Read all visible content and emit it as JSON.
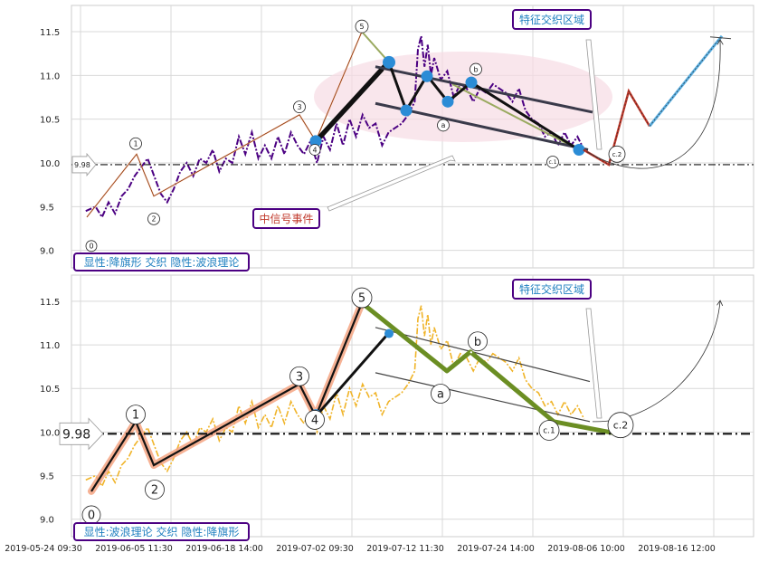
{
  "chart_data": [
    {
      "type": "line",
      "panel": "top",
      "ylim": [
        8.8,
        11.8
      ],
      "y_ticks": [
        "9.0",
        "9.5",
        "10.0",
        "10.5",
        "11.0",
        "11.5"
      ],
      "grid": true,
      "price_series": [
        [
          3,
          9.45
        ],
        [
          6,
          9.5
        ],
        [
          8,
          9.38
        ],
        [
          10,
          9.55
        ],
        [
          12,
          9.42
        ],
        [
          14,
          9.62
        ],
        [
          16,
          9.7
        ],
        [
          18,
          9.85
        ],
        [
          20,
          9.95
        ],
        [
          22,
          10.05
        ],
        [
          24,
          9.85
        ],
        [
          26,
          9.65
        ],
        [
          28,
          9.55
        ],
        [
          30,
          9.7
        ],
        [
          32,
          9.9
        ],
        [
          34,
          10.0
        ],
        [
          36,
          9.85
        ],
        [
          38,
          10.05
        ],
        [
          40,
          10.0
        ],
        [
          42,
          10.15
        ],
        [
          44,
          9.9
        ],
        [
          46,
          10.05
        ],
        [
          48,
          10.0
        ],
        [
          50,
          10.3
        ],
        [
          52,
          10.1
        ],
        [
          54,
          10.35
        ],
        [
          56,
          10.05
        ],
        [
          58,
          10.2
        ],
        [
          60,
          10.05
        ],
        [
          62,
          10.3
        ],
        [
          64,
          10.1
        ],
        [
          66,
          10.35
        ],
        [
          68,
          10.2
        ],
        [
          70,
          10.1
        ],
        [
          72,
          10.25
        ],
        [
          74,
          10.0
        ],
        [
          76,
          10.3
        ],
        [
          78,
          10.15
        ],
        [
          80,
          10.45
        ],
        [
          82,
          10.2
        ],
        [
          84,
          10.5
        ],
        [
          86,
          10.3
        ],
        [
          88,
          10.55
        ],
        [
          90,
          10.4
        ],
        [
          92,
          10.45
        ],
        [
          94,
          10.2
        ],
        [
          96,
          10.35
        ],
        [
          98,
          10.4
        ],
        [
          100,
          10.45
        ],
        [
          102,
          10.55
        ],
        [
          104,
          10.7
        ],
        [
          105,
          11.3
        ],
        [
          106,
          11.45
        ],
        [
          107,
          11.1
        ],
        [
          108,
          11.35
        ],
        [
          109,
          11.0
        ],
        [
          110,
          11.2
        ],
        [
          112,
          10.95
        ],
        [
          114,
          11.05
        ],
        [
          116,
          10.75
        ],
        [
          118,
          10.9
        ],
        [
          120,
          10.85
        ],
        [
          122,
          10.7
        ],
        [
          124,
          10.85
        ],
        [
          126,
          10.8
        ],
        [
          128,
          10.9
        ],
        [
          130,
          10.85
        ],
        [
          132,
          10.8
        ],
        [
          134,
          10.7
        ],
        [
          136,
          10.85
        ],
        [
          138,
          10.6
        ],
        [
          140,
          10.5
        ],
        [
          142,
          10.45
        ],
        [
          144,
          10.3
        ],
        [
          146,
          10.35
        ],
        [
          148,
          10.2
        ],
        [
          150,
          10.35
        ],
        [
          152,
          10.2
        ],
        [
          154,
          10.3
        ],
        [
          156,
          10.15
        ]
      ],
      "wave_points": [
        [
          3,
          9.38
        ],
        [
          10,
          10.1
        ],
        [
          13,
          9.62
        ],
        [
          40,
          10.6
        ],
        [
          43,
          10.25
        ],
        [
          52,
          11.5
        ],
        [
          56,
          11.15
        ],
        [
          59,
          10.6
        ],
        [
          62,
          11.0
        ],
        [
          66,
          10.7
        ],
        [
          69,
          10.9
        ],
        [
          85,
          10.15
        ],
        [
          89,
          9.98
        ]
      ],
      "wave_labels": [
        "0",
        "1",
        "2",
        "3",
        "4",
        "5",
        "a",
        "b",
        "c.1",
        "c.2"
      ],
      "reference_line_label": "9.98",
      "title_box": "显性:降旗形 交织 隐性:波浪理论",
      "annotation_feature": "特征交织区域",
      "annotation_signal": "中信号事件"
    },
    {
      "type": "line",
      "panel": "bottom",
      "ylim": [
        8.8,
        11.8
      ],
      "y_ticks": [
        "9.0",
        "9.5",
        "10.0",
        "10.5",
        "11.0",
        "11.5"
      ],
      "grid": true,
      "x_ticks": [
        "2019-05-24 09:30",
        "2019-06-05 11:30",
        "2019-06-18 14:00",
        "2019-07-02 09:30",
        "2019-07-12 11:30",
        "2019-07-24 14:00",
        "2019-08-06 10:00",
        "2019-08-16 12:00"
      ],
      "reference_line_label": "9.98",
      "wave_labels": [
        "0",
        "1",
        "2",
        "3",
        "4",
        "5",
        "a",
        "b",
        "c.1",
        "c.2"
      ],
      "title_box": "显性:波浪理论 交织 隐性:降旗形",
      "annotation_feature": "特征交织区域"
    }
  ],
  "colors": {
    "top_price": "#4b0082",
    "bottom_price": "#f0b429",
    "wave_orange": "#f4a582",
    "flag_black": "#111111",
    "flag_gray": "#3a3a4a",
    "green": "#6b8e23",
    "marker_blue": "#2b8cd6",
    "label_text": "#2080c0",
    "label_border": "#4b0082",
    "ellipse": "#f6dce4",
    "projection_red": "#c0392b",
    "projection_blue": "#5aaee0"
  }
}
